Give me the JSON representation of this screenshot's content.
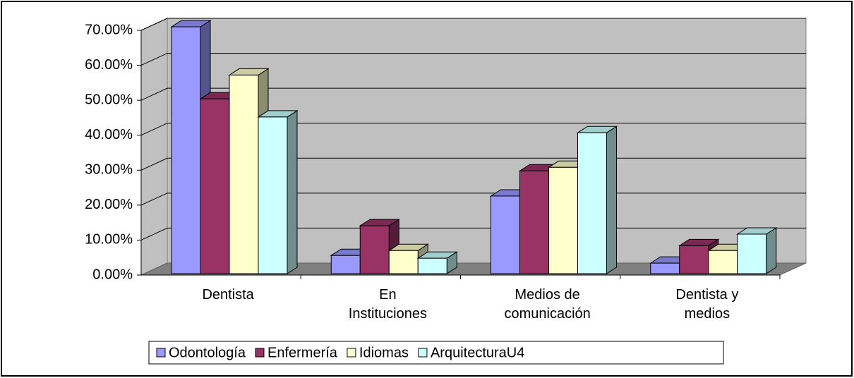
{
  "chart_data": {
    "type": "bar3d",
    "categories": [
      "Dentista",
      "En\nInstituciones",
      "Medios de\ncomunicación",
      "Dentista y\nmedios"
    ],
    "series": [
      {
        "name": "Odontología",
        "color": "#9999ff",
        "values": [
          70.6,
          5.2,
          22.2,
          3
        ]
      },
      {
        "name": "Enfermería",
        "color": "#993366",
        "values": [
          50,
          13.7,
          29.4,
          8
        ]
      },
      {
        "name": "Idiomas",
        "color": "#ffffcc",
        "values": [
          56.8,
          6.6,
          30.4,
          6.6
        ]
      },
      {
        "name": "ArquitecturaU4",
        "color": "#ccffff",
        "values": [
          44.8,
          4.4,
          40.3,
          11.3
        ]
      }
    ],
    "ylim": [
      0,
      70
    ],
    "yticks": [
      {
        "value": 0,
        "label": "0.00%"
      },
      {
        "value": 10,
        "label": "10.00%"
      },
      {
        "value": 20,
        "label": "20.00%"
      },
      {
        "value": 30,
        "label": "30.00%"
      },
      {
        "value": 40,
        "label": "40.00%"
      },
      {
        "value": 50,
        "label": "50.00%"
      },
      {
        "value": 60,
        "label": "60.00%"
      },
      {
        "value": 70,
        "label": "70.00%"
      }
    ],
    "grid": true,
    "legend": "bottom"
  }
}
